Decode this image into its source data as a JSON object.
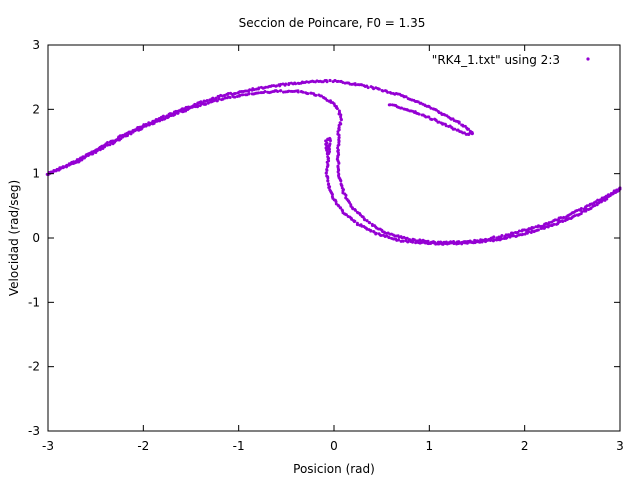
{
  "chart_data": {
    "type": "scatter",
    "title": "Seccion de Poincare, F0 = 1.35",
    "xlabel": "Posicion (rad)",
    "ylabel": "Velocidad (rad/seg)",
    "xlim": [
      -3,
      3
    ],
    "ylim": [
      -3,
      3
    ],
    "x_ticks": [
      "-3",
      "-2",
      "-1",
      "0",
      "1",
      "2",
      "3"
    ],
    "y_ticks": [
      "-3",
      "-2",
      "-1",
      "0",
      "1",
      "2",
      "3"
    ],
    "grid": false,
    "legend_position": "top-right",
    "series": [
      {
        "name": "\"RK4_1.txt\" using 2:3",
        "color": "#9400d3",
        "segments": [
          {
            "id": "outer-arc",
            "x": [
              -3.0,
              -2.7,
              -2.4,
              -2.1,
              -1.8,
              -1.5,
              -1.2,
              -0.9,
              -0.6,
              -0.3,
              -0.1,
              0.0,
              0.1,
              0.3,
              0.5,
              0.7,
              0.9,
              1.05,
              1.2,
              1.32,
              1.4,
              1.44,
              1.45
            ],
            "y": [
              1.0,
              1.2,
              1.45,
              1.68,
              1.88,
              2.05,
              2.2,
              2.3,
              2.37,
              2.42,
              2.44,
              2.44,
              2.42,
              2.37,
              2.3,
              2.22,
              2.1,
              2.0,
              1.88,
              1.78,
              1.7,
              1.64,
              1.62
            ]
          },
          {
            "id": "inner-arc",
            "x": [
              -3.0,
              -2.7,
              -2.4,
              -2.1,
              -1.8,
              -1.5,
              -1.2,
              -0.9,
              -0.6,
              -0.4,
              -0.25,
              -0.1,
              0.0,
              0.05,
              0.07,
              0.07,
              0.05
            ],
            "y": [
              1.0,
              1.18,
              1.42,
              1.65,
              1.85,
              2.02,
              2.15,
              2.24,
              2.28,
              2.28,
              2.25,
              2.18,
              2.08,
              1.98,
              1.88,
              1.8,
              1.7
            ]
          },
          {
            "id": "tip-band",
            "x": [
              1.45,
              1.38,
              1.3,
              1.2,
              1.08,
              0.95,
              0.82,
              0.7,
              0.58
            ],
            "y": [
              1.62,
              1.62,
              1.67,
              1.74,
              1.82,
              1.9,
              1.97,
              2.03,
              2.07
            ]
          },
          {
            "id": "inner-fold",
            "x": [
              0.05,
              0.04,
              0.05,
              0.1,
              0.18,
              0.3,
              0.45,
              0.6,
              0.8,
              1.0,
              1.2,
              1.4,
              1.6,
              1.8,
              2.0,
              2.2,
              2.4,
              2.6,
              2.8,
              3.0
            ],
            "y": [
              1.7,
              1.3,
              1.0,
              0.7,
              0.5,
              0.32,
              0.15,
              0.05,
              -0.02,
              -0.06,
              -0.07,
              -0.06,
              -0.02,
              0.04,
              0.12,
              0.2,
              0.32,
              0.45,
              0.6,
              0.78
            ]
          },
          {
            "id": "outer-fold",
            "x": [
              -0.08,
              -0.06,
              -0.08,
              -0.05,
              0.0,
              0.1,
              0.25,
              0.45,
              0.7,
              0.95,
              1.2,
              1.45,
              1.7,
              1.95,
              2.2,
              2.5,
              2.8,
              3.0
            ],
            "y": [
              1.45,
              1.22,
              1.0,
              0.78,
              0.6,
              0.4,
              0.22,
              0.06,
              -0.04,
              -0.08,
              -0.09,
              -0.07,
              -0.03,
              0.05,
              0.15,
              0.32,
              0.55,
              0.76
            ]
          },
          {
            "id": "hook",
            "x": [
              -0.06,
              -0.04,
              -0.05,
              -0.08,
              -0.07
            ],
            "y": [
              1.3,
              1.45,
              1.55,
              1.5,
              1.38
            ]
          }
        ]
      }
    ]
  }
}
